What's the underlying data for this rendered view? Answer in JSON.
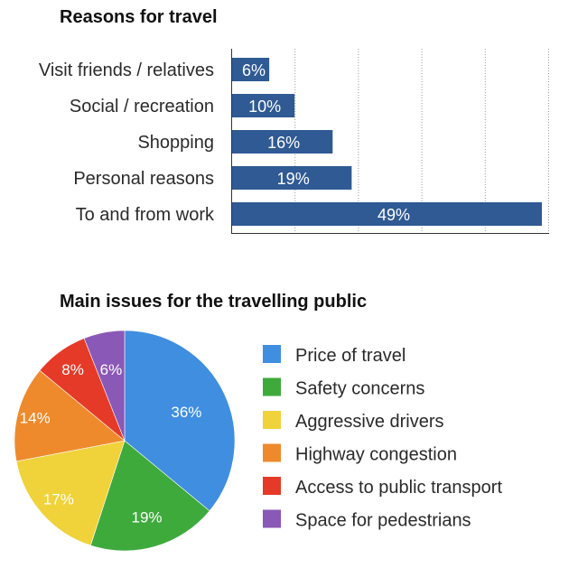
{
  "chart_data": [
    {
      "type": "bar",
      "orientation": "horizontal",
      "title": "Reasons for travel",
      "categories": [
        "Visit friends / relatives",
        "Social / recreation",
        "Shopping",
        "Personal reasons",
        "To and from work"
      ],
      "values": [
        6,
        10,
        16,
        19,
        49
      ],
      "labels": [
        "6%",
        "10%",
        "16%",
        "19%",
        "49%"
      ],
      "xlim": [
        0,
        50
      ],
      "grid": true,
      "bar_color": "#2f5a94"
    },
    {
      "type": "pie",
      "title": "Main issues for the travelling public",
      "categories": [
        "Price of travel",
        "Safety concerns",
        "Aggressive drivers",
        "Highway congestion",
        "Access to public transport",
        "Space for pedestrians"
      ],
      "values": [
        36,
        19,
        17,
        14,
        8,
        6
      ],
      "labels": [
        "36%",
        "19%",
        "17%",
        "14%",
        "8%",
        "6%"
      ],
      "colors": [
        "#3f8ee0",
        "#3eaa3c",
        "#f0d23a",
        "#ee8a2c",
        "#e53a27",
        "#8a58b6"
      ],
      "legend": "right"
    }
  ]
}
